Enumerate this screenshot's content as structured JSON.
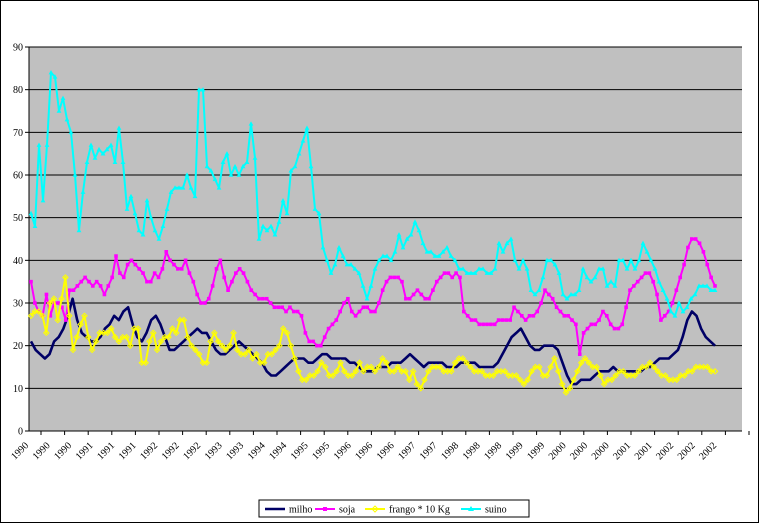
{
  "chart_data": {
    "type": "line",
    "title": "",
    "xlabel": "",
    "ylabel": "",
    "ylim": [
      0,
      90
    ],
    "yticks": [
      0,
      10,
      20,
      30,
      40,
      50,
      60,
      70,
      80,
      90
    ],
    "grid": "horizontal",
    "legend_position": "bottom-center",
    "x_tick_labels": [
      "1990",
      "1990",
      "1990",
      "1991",
      "1991",
      "1991",
      "1992",
      "1992",
      "1992",
      "1993",
      "1993",
      "1994",
      "1994",
      "1995",
      "1995",
      "1996",
      "1996",
      "1996",
      "1997",
      "1997",
      "1998",
      "1998",
      "1998",
      "1999",
      "1999",
      "2000",
      "2000",
      "2000",
      "2001",
      "2001",
      "2002",
      "2002",
      "2002"
    ],
    "series": [
      {
        "name": "milho",
        "color": "#000066",
        "marker": "none",
        "values": [
          21,
          19,
          18,
          17,
          18,
          21,
          22,
          24,
          27,
          31,
          26,
          23,
          22,
          21,
          21,
          22,
          24,
          25,
          27,
          26,
          28,
          29,
          25,
          22,
          21,
          23,
          26,
          27,
          25,
          22,
          19,
          19,
          20,
          21,
          22,
          23,
          24,
          23,
          23,
          21,
          19,
          18,
          18,
          19,
          20,
          21,
          20,
          19,
          18,
          17,
          16,
          14,
          13,
          13,
          14,
          15,
          16,
          17,
          17,
          17,
          16,
          16,
          17,
          18,
          18,
          17,
          17,
          17,
          17,
          16,
          16,
          15,
          14,
          14,
          14,
          15,
          15,
          15,
          16,
          16,
          16,
          17,
          18,
          17,
          16,
          15,
          16,
          16,
          16,
          16,
          15,
          15,
          15,
          16,
          16,
          16,
          16,
          15,
          15,
          15,
          15,
          16,
          18,
          20,
          22,
          23,
          24,
          22,
          20,
          19,
          19,
          20,
          20,
          20,
          19,
          16,
          13,
          11,
          11,
          12,
          12,
          12,
          13,
          14,
          14,
          14,
          15,
          14,
          14,
          14,
          14,
          14,
          14,
          15,
          15,
          16,
          17,
          17,
          17,
          18,
          19,
          22,
          26,
          28,
          27,
          24,
          22,
          21,
          20
        ]
      },
      {
        "name": "soja",
        "color": "#FF00FF",
        "marker": "square",
        "values": [
          35,
          30,
          28,
          27,
          32,
          27,
          30,
          30,
          29,
          26,
          33,
          33,
          34,
          35,
          36,
          35,
          34,
          35,
          34,
          32,
          34,
          36,
          41,
          37,
          36,
          39,
          40,
          39,
          38,
          37,
          35,
          35,
          37,
          36,
          38,
          42,
          40,
          39,
          38,
          38,
          40,
          37,
          35,
          32,
          30,
          30,
          31,
          34,
          38,
          40,
          36,
          33,
          35,
          37,
          38,
          37,
          35,
          33,
          32,
          31,
          31,
          31,
          30,
          29,
          29,
          29,
          28,
          29,
          28,
          28,
          27,
          23,
          21,
          21,
          20,
          20,
          22,
          24,
          25,
          26,
          28,
          30,
          31,
          28,
          27,
          28,
          29,
          29,
          28,
          28,
          30,
          33,
          35,
          36,
          36,
          36,
          35,
          31,
          31,
          32,
          33,
          32,
          31,
          31,
          33,
          35,
          36,
          37,
          37,
          36,
          37,
          36,
          28,
          27,
          26,
          26,
          25,
          25,
          25,
          25,
          25,
          26,
          26,
          26,
          26,
          29,
          28,
          27,
          26,
          27,
          27,
          28,
          30,
          33,
          32,
          31,
          29,
          28,
          27,
          27,
          26,
          25,
          18,
          23,
          24,
          25,
          25,
          26,
          28,
          27,
          25,
          24,
          24,
          25,
          29,
          33,
          34,
          35,
          36,
          37,
          37,
          35,
          32,
          26,
          27,
          28,
          30,
          33,
          36,
          39,
          43,
          45,
          45,
          44,
          42,
          39,
          36,
          34
        ]
      },
      {
        "name": "frango * 10 Kg",
        "color": "#FFFF00",
        "marker": "diamond",
        "values": [
          27,
          28,
          28,
          27,
          23,
          30,
          31,
          26,
          31,
          36,
          27,
          19,
          22,
          25,
          27,
          22,
          19,
          21,
          23,
          23,
          23,
          24,
          22,
          21,
          22,
          22,
          20,
          24,
          24,
          16,
          16,
          21,
          23,
          19,
          21,
          22,
          22,
          24,
          23,
          26,
          26,
          22,
          20,
          19,
          18,
          16,
          16,
          21,
          23,
          21,
          20,
          19,
          20,
          23,
          19,
          18,
          18,
          19,
          17,
          18,
          16,
          16,
          18,
          18,
          19,
          20,
          24,
          23,
          20,
          17,
          14,
          12,
          12,
          13,
          13,
          14,
          16,
          15,
          13,
          13,
          14,
          16,
          14,
          13,
          13,
          14,
          16,
          14,
          15,
          15,
          14,
          15,
          17,
          16,
          14,
          14,
          15,
          14,
          14,
          12,
          14,
          11,
          10,
          12,
          14,
          15,
          15,
          15,
          14,
          14,
          14,
          16,
          17,
          17,
          16,
          15,
          14,
          14,
          14,
          13,
          13,
          13,
          14,
          14,
          14,
          13,
          13,
          13,
          12,
          11,
          12,
          14,
          15,
          15,
          13,
          13,
          15,
          17,
          14,
          11,
          9,
          10,
          12,
          14,
          16,
          17,
          16,
          15,
          15,
          13,
          11,
          12,
          12,
          13,
          14,
          14,
          13,
          13,
          13,
          14,
          15,
          15,
          16,
          15,
          14,
          13,
          13,
          12,
          12,
          12,
          13,
          13,
          14,
          14,
          15,
          15,
          15,
          15,
          14,
          14
        ]
      },
      {
        "name": "suino",
        "color": "#00FFFF",
        "marker": "triangle",
        "values": [
          51,
          48,
          67,
          54,
          67,
          84,
          83,
          75,
          78,
          73,
          70,
          60,
          47,
          56,
          63,
          67,
          64,
          66,
          65,
          66,
          67,
          63,
          71,
          63,
          52,
          55,
          51,
          47,
          46,
          54,
          50,
          47,
          45,
          48,
          52,
          56,
          57,
          57,
          57,
          60,
          57,
          55,
          80,
          80,
          62,
          61,
          59,
          57,
          63,
          65,
          60,
          62,
          60,
          62,
          63,
          72,
          64,
          45,
          48,
          47,
          48,
          46,
          49,
          54,
          51,
          61,
          62,
          65,
          68,
          71,
          62,
          52,
          51,
          43,
          40,
          37,
          39,
          43,
          41,
          39,
          39,
          38,
          37,
          34,
          31,
          34,
          38,
          40,
          41,
          41,
          40,
          42,
          46,
          43,
          45,
          46,
          49,
          47,
          44,
          42,
          42,
          41,
          41,
          42,
          43,
          41,
          40,
          38,
          38,
          37,
          37,
          37,
          38,
          38,
          37,
          37,
          38,
          44,
          42,
          44,
          45,
          40,
          38,
          40,
          38,
          33,
          32,
          33,
          36,
          40,
          40,
          39,
          37,
          32,
          31,
          32,
          32,
          33,
          38,
          36,
          35,
          36,
          38,
          38,
          34,
          35,
          34,
          40,
          40,
          38,
          40,
          38,
          40,
          44,
          42,
          40,
          38,
          35,
          33,
          31,
          28,
          27,
          30,
          28,
          29,
          31,
          32,
          34,
          34,
          34,
          33,
          33
        ]
      }
    ]
  }
}
